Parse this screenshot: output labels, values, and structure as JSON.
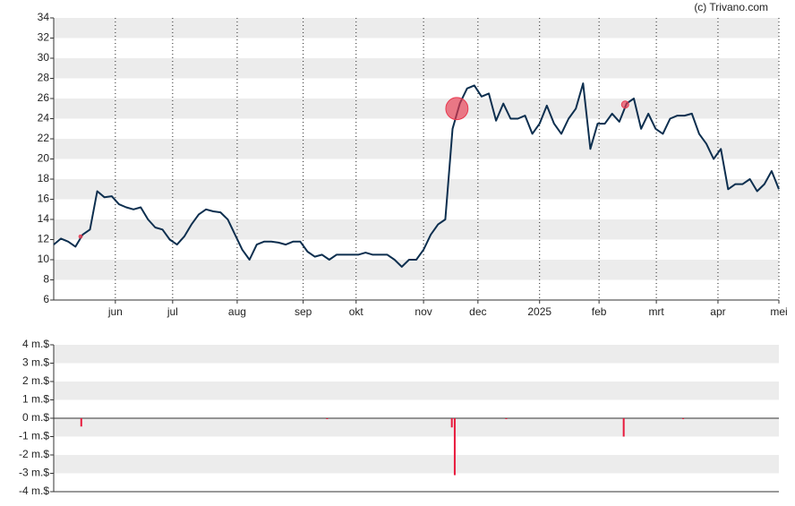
{
  "credit": "(c) Trivano.com",
  "chart_data": [
    {
      "type": "line",
      "color": "#0d2f4f",
      "x": [
        0,
        1,
        2,
        3,
        4,
        5,
        6,
        7,
        8,
        9,
        10,
        11,
        12,
        13,
        14,
        15,
        16,
        17,
        18,
        19,
        20,
        21,
        22,
        23,
        24,
        25,
        26,
        27,
        28,
        29,
        30,
        31,
        32,
        33,
        34,
        35,
        36,
        37,
        38,
        39,
        40,
        41,
        42,
        43,
        44,
        45,
        46,
        47,
        48,
        49,
        50,
        51,
        52,
        53,
        54,
        55,
        56,
        57,
        58,
        59,
        60,
        61,
        62,
        63,
        64,
        65,
        66,
        67,
        68,
        69,
        70,
        71,
        72,
        73,
        74,
        75,
        76,
        77,
        78,
        79,
        80,
        81,
        82,
        83,
        84,
        85,
        86,
        87,
        88,
        89,
        90,
        91,
        92,
        93,
        94,
        95,
        96,
        97,
        98,
        99,
        100
      ],
      "values": [
        11.5,
        12.1,
        11.8,
        11.3,
        12.5,
        13.0,
        16.8,
        16.2,
        16.3,
        15.5,
        15.2,
        15.0,
        15.2,
        14.0,
        13.2,
        13.0,
        12.0,
        11.5,
        12.3,
        13.5,
        14.5,
        15.0,
        14.8,
        14.7,
        14.0,
        12.5,
        11.0,
        10.0,
        11.5,
        11.8,
        11.8,
        11.7,
        11.5,
        11.8,
        11.8,
        10.8,
        10.3,
        10.5,
        10.0,
        10.5,
        10.5,
        10.5,
        10.5,
        10.7,
        10.5,
        10.5,
        10.5,
        10.0,
        9.3,
        10.0,
        10.0,
        11.0,
        12.5,
        13.5,
        14.0,
        23.0,
        25.5,
        27.0,
        27.3,
        26.2,
        26.5,
        23.8,
        25.5,
        24.0,
        24.0,
        24.3,
        22.5,
        23.5,
        25.3,
        23.5,
        22.5,
        24.0,
        25.0,
        27.5,
        21.0,
        23.5,
        23.5,
        24.5,
        23.7,
        25.5,
        26.0,
        23.0,
        24.5,
        23.0,
        22.5,
        24.0,
        24.3,
        24.3,
        24.5,
        22.5,
        21.5,
        20.0,
        21.0,
        17.0,
        17.5,
        17.5,
        18.0,
        16.8,
        17.5,
        18.8,
        17.0
      ],
      "xlim": [
        0,
        100
      ],
      "xticks": [
        {
          "value": 8.5,
          "label": "jun"
        },
        {
          "value": 16.4,
          "label": "jul"
        },
        {
          "value": 25.3,
          "label": "aug"
        },
        {
          "value": 34.4,
          "label": "sep"
        },
        {
          "value": 41.7,
          "label": "okt"
        },
        {
          "value": 51,
          "label": "nov"
        },
        {
          "value": 58.5,
          "label": "dec"
        },
        {
          "value": 67,
          "label": "2025"
        },
        {
          "value": 75.2,
          "label": "feb"
        },
        {
          "value": 83.1,
          "label": "mrt"
        },
        {
          "value": 91.6,
          "label": "apr"
        },
        {
          "value": 100,
          "label": "mei"
        }
      ],
      "ylim": [
        6,
        34
      ],
      "yticks": [
        6,
        8,
        10,
        12,
        14,
        16,
        18,
        20,
        22,
        24,
        26,
        28,
        30,
        32,
        34
      ],
      "bubbles": {
        "color": "#e8394f",
        "x": [
          3.7,
          55.6,
          78.8
        ],
        "y": [
          12.3,
          25.0,
          25.4
        ],
        "size": [
          0.45,
          3.1,
          1.0
        ]
      }
    },
    {
      "type": "bar",
      "color": "#e8193c",
      "x": [
        3.8,
        37.7,
        54.9,
        55.3,
        62.4,
        78.6,
        86.8
      ],
      "values": [
        -0.45,
        -0.05,
        -0.5,
        -3.1,
        -0.05,
        -1.0,
        -0.05
      ],
      "xlim": [
        0,
        100
      ],
      "ylim": [
        -4,
        4
      ],
      "yticks": [
        {
          "value": -4,
          "label": "-4 m.$"
        },
        {
          "value": -3,
          "label": "-3 m.$"
        },
        {
          "value": -2,
          "label": "-2 m.$"
        },
        {
          "value": -1,
          "label": "-1 m.$"
        },
        {
          "value": 0,
          "label": "0 m.$"
        },
        {
          "value": 1,
          "label": "1 m.$"
        },
        {
          "value": 2,
          "label": "2 m.$"
        },
        {
          "value": 3,
          "label": "3 m.$"
        },
        {
          "value": 4,
          "label": "4 m.$"
        }
      ]
    }
  ]
}
